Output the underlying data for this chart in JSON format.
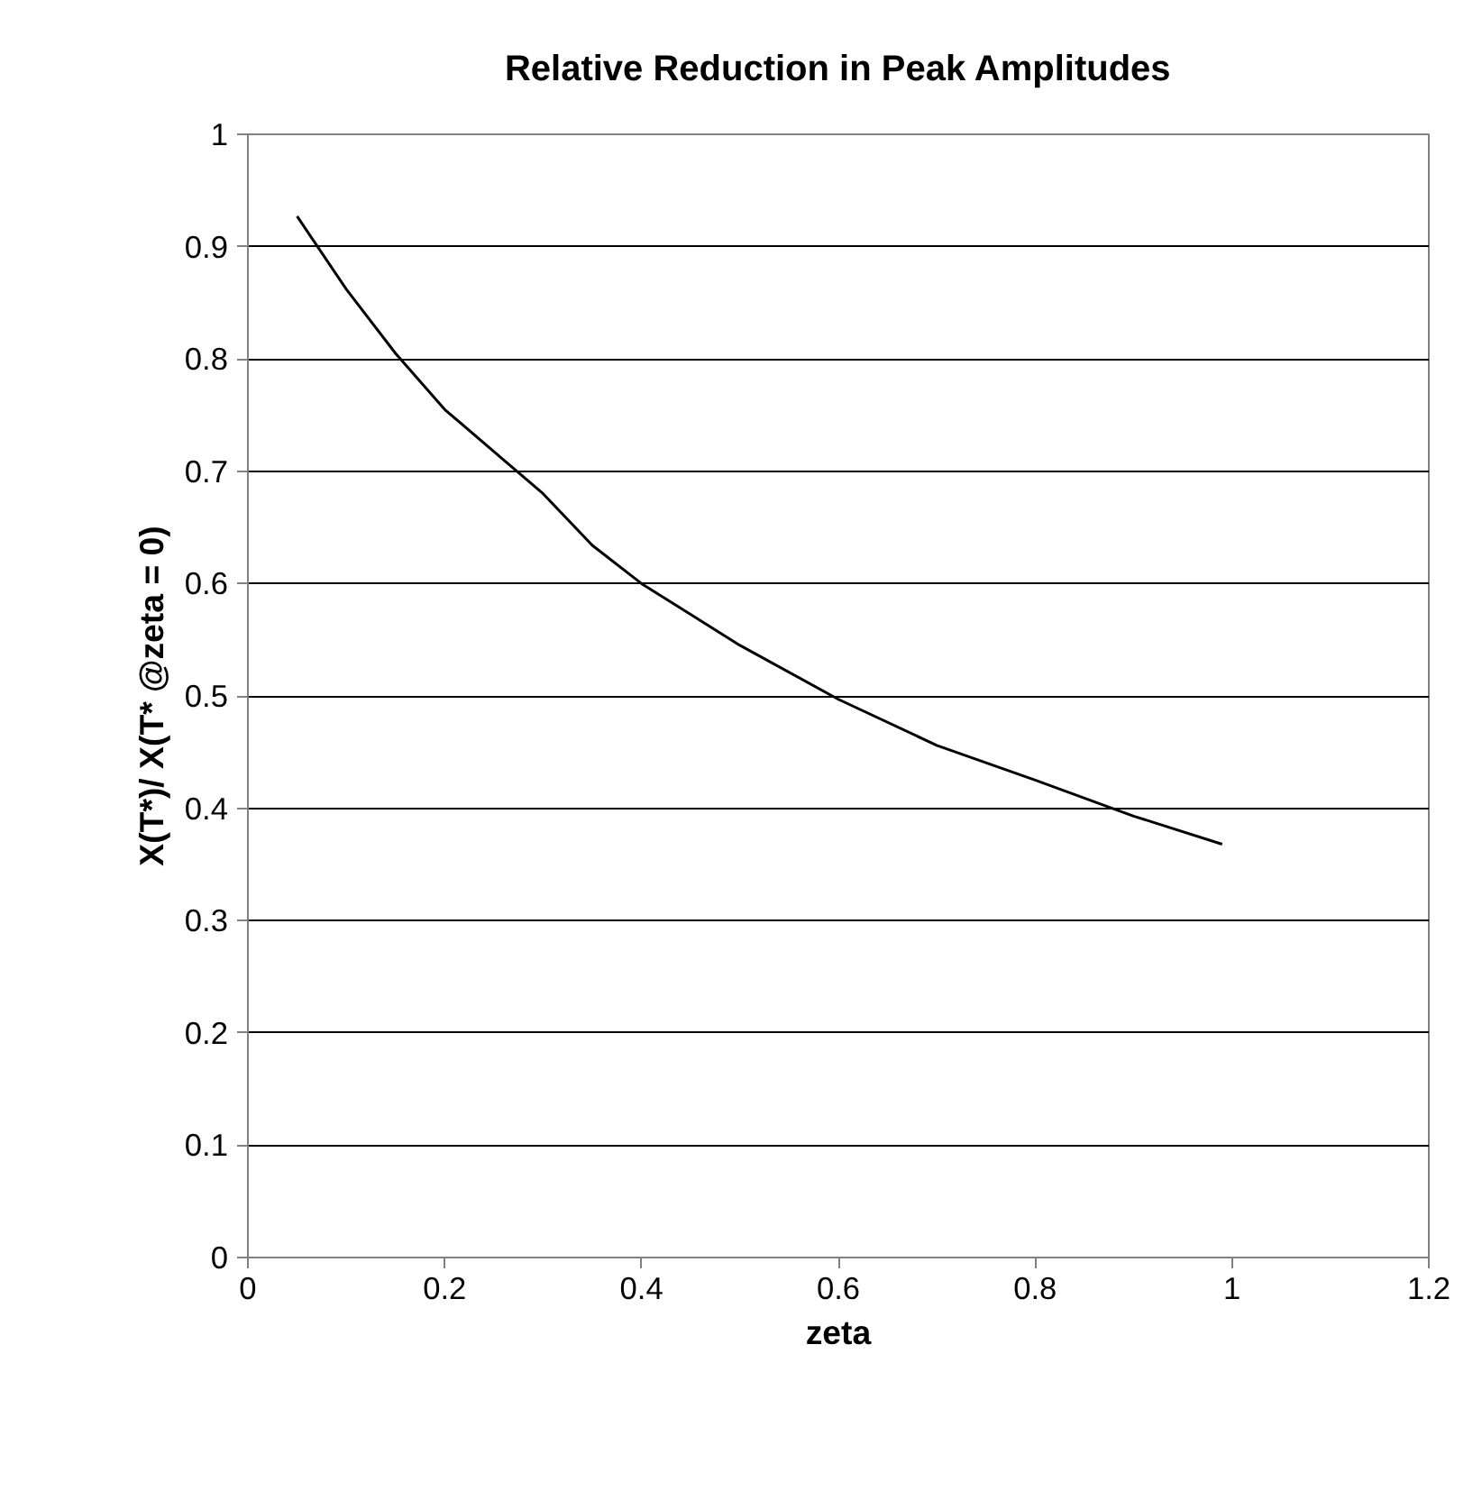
{
  "chart_data": {
    "type": "line",
    "title": "Relative Reduction in Peak Amplitudes",
    "xlabel": "zeta",
    "ylabel": "X(T*)/ X(T* @zeta = 0)",
    "x": [
      0.05,
      0.1,
      0.15,
      0.2,
      0.3,
      0.35,
      0.4,
      0.5,
      0.6,
      0.7,
      0.8,
      0.9,
      0.99
    ],
    "series": [
      {
        "color": "#000000",
        "values": [
          0.927,
          0.862,
          0.805,
          0.755,
          0.68,
          0.634,
          0.6,
          0.545,
          0.497,
          0.456,
          0.425,
          0.393,
          0.368
        ]
      }
    ],
    "xlim": [
      0,
      1.2
    ],
    "xticks": [
      0,
      0.2,
      0.4,
      0.6,
      0.8,
      1,
      1.2
    ],
    "ylim": [
      0,
      1
    ],
    "yticks": [
      0,
      0.1,
      0.2,
      0.3,
      0.4,
      0.5,
      0.6,
      0.7,
      0.8,
      0.9,
      1
    ],
    "grid": "y",
    "line_style": "solid"
  }
}
